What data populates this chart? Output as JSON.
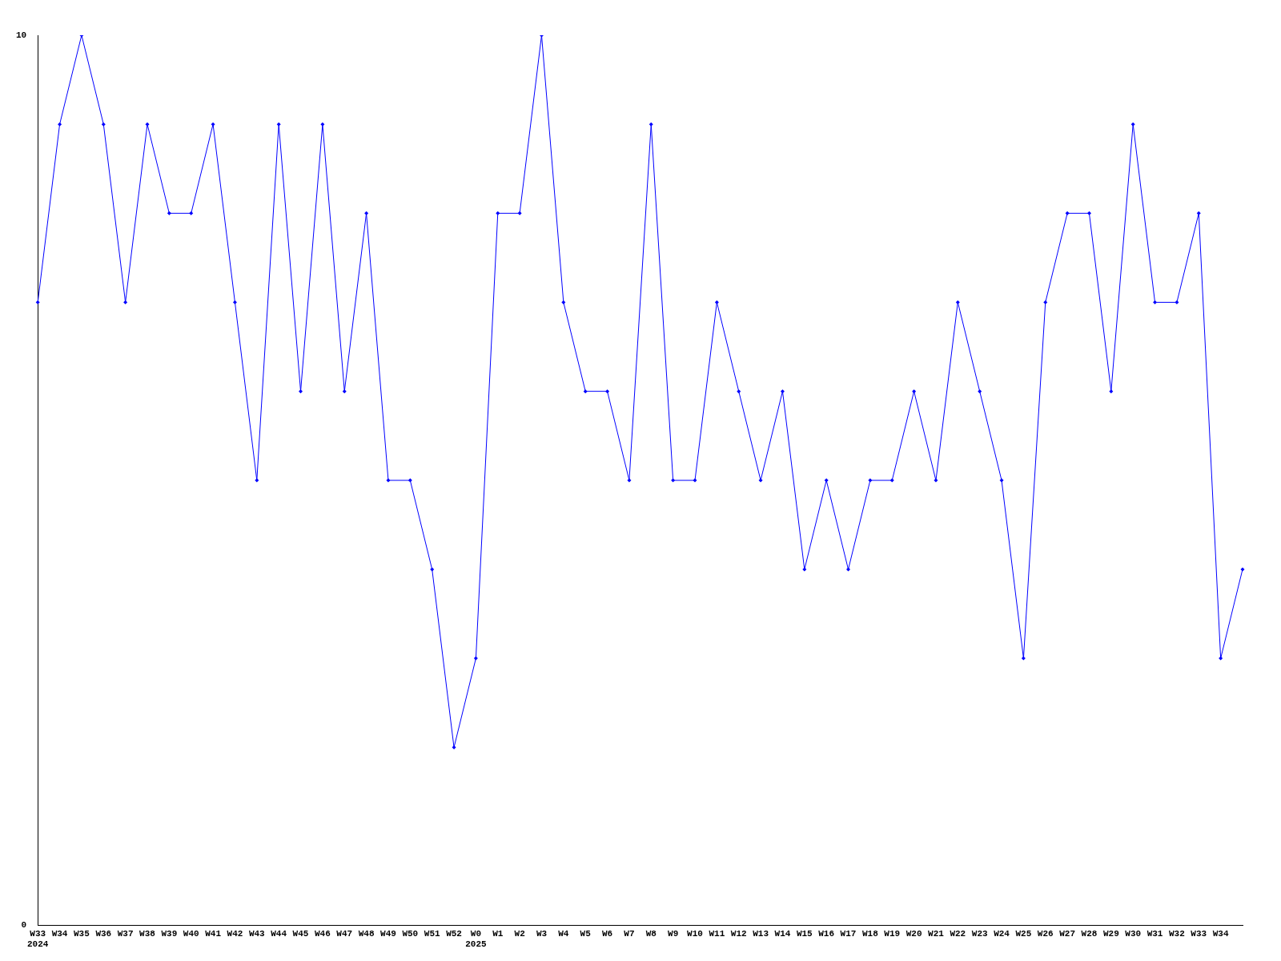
{
  "chart_data": {
    "type": "line",
    "categories": [
      "W33\n2024",
      "W34",
      "W35",
      "W36",
      "W37",
      "W38",
      "W39",
      "W40",
      "W41",
      "W42",
      "W43",
      "W44",
      "W45",
      "W46",
      "W47",
      "W48",
      "W49",
      "W50",
      "W51",
      "W52",
      "W0\n2025",
      "W1",
      "W2",
      "W3",
      "W4",
      "W5",
      "W6",
      "W7",
      "W8",
      "W9",
      "W10",
      "W11",
      "W12",
      "W13",
      "W14",
      "W15",
      "W16",
      "W17",
      "W18",
      "W19",
      "W20",
      "W21",
      "W22",
      "W23",
      "W24",
      "W25",
      "W26",
      "W27",
      "W28",
      "W29",
      "W30",
      "W31",
      "W32",
      "W33",
      "W34",
      null
    ],
    "series": [
      {
        "color": "#0000ff",
        "values": [
          7,
          9,
          10,
          9,
          7,
          9,
          8,
          8,
          9,
          7,
          5,
          9,
          6,
          9,
          6,
          8,
          5,
          5,
          4,
          2,
          3,
          8,
          8,
          10,
          7,
          6,
          6,
          5,
          9,
          5,
          5,
          7,
          6,
          5,
          6,
          4,
          5,
          4,
          5,
          5,
          6,
          5,
          7,
          6,
          5,
          3,
          7,
          8,
          8,
          6,
          9,
          7,
          7,
          8,
          3,
          4
        ]
      }
    ],
    "ylim": [
      0,
      10
    ],
    "yticks": [
      0,
      10
    ],
    "legend": false,
    "marker": "diamond",
    "line_style": "solid"
  }
}
